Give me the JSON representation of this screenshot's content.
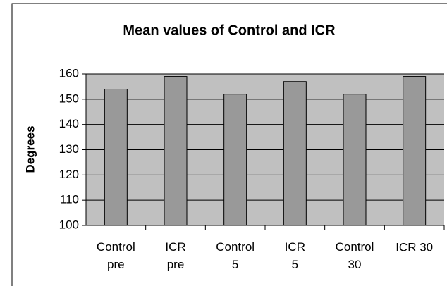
{
  "chart_data": {
    "type": "bar",
    "title": "Mean values of Control and ICR",
    "y_label": "Degrees",
    "categories": [
      "Control\npre",
      "ICR\npre",
      "Control\n5",
      "ICR\n5",
      "Control\n30",
      "ICR  30"
    ],
    "values": [
      154,
      159,
      152,
      157,
      152,
      159
    ],
    "color": "#999999",
    "plot_background": "#c0c0c0",
    "ylim": [
      100,
      160
    ],
    "yticks": [
      100,
      110,
      120,
      130,
      140,
      150,
      160
    ],
    "grid": true
  }
}
